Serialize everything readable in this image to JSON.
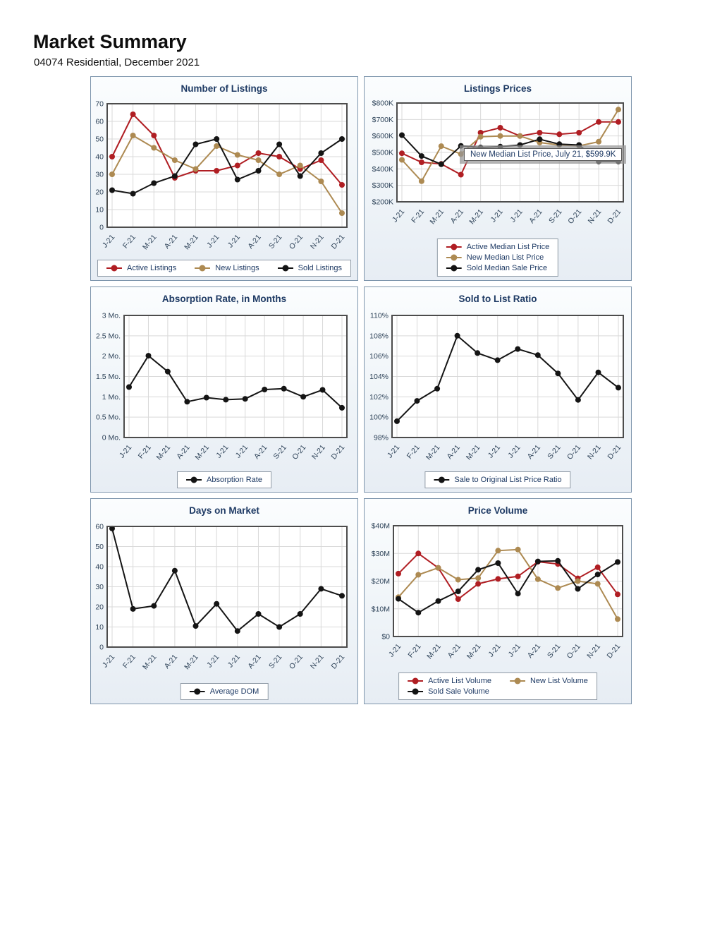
{
  "header": {
    "title": "Market Summary",
    "subtitle": "04074 Residential, December 2021"
  },
  "colors": {
    "active_series": "#b01e23",
    "new_series": "#ad8a52",
    "sold_series": "#141414",
    "heading_navy": "#1e3a64",
    "panel_border": "#7d95ac"
  },
  "tooltip": {
    "chart_id": "listings_prices",
    "text": "New Median List Price, July 21, $599.9K"
  },
  "chart_data": [
    {
      "id": "number_of_listings",
      "type": "line",
      "title": "Number of Listings",
      "categories": [
        "J-21",
        "F-21",
        "M-21",
        "A-21",
        "M-21",
        "J-21",
        "J-21",
        "A-21",
        "S-21",
        "O-21",
        "N-21",
        "D-21"
      ],
      "ylim": [
        0,
        70
      ],
      "yticks": [
        "70",
        "60",
        "50",
        "40",
        "30",
        "20",
        "10",
        "0"
      ],
      "grid": true,
      "legend_position": "bottom",
      "series": [
        {
          "name": "Active Listings",
          "color": "#b01e23",
          "values": [
            40,
            64,
            52,
            28,
            32,
            32,
            35,
            42,
            40,
            33,
            38,
            24
          ]
        },
        {
          "name": "New Listings",
          "color": "#ad8a52",
          "values": [
            30,
            52,
            45,
            38,
            33,
            46,
            41,
            38,
            30,
            35,
            26,
            8
          ]
        },
        {
          "name": "Sold Listings",
          "color": "#141414",
          "values": [
            21,
            19,
            25,
            29,
            47,
            50,
            27,
            32,
            47,
            29,
            42,
            50
          ]
        }
      ],
      "legend_rows": [
        [
          "Active Listings",
          "New Listings",
          "Sold Listings"
        ]
      ]
    },
    {
      "id": "listings_prices",
      "type": "line",
      "title": "Listings Prices",
      "categories": [
        "J-21",
        "F-21",
        "M-21",
        "A-21",
        "M-21",
        "J-21",
        "J-21",
        "A-21",
        "S-21",
        "O-21",
        "N-21",
        "D-21"
      ],
      "ylim": [
        200,
        800
      ],
      "yticks": [
        "$800K",
        "$700K",
        "$600K",
        "$500K",
        "$400K",
        "$300K",
        "$200K"
      ],
      "y_unit": "$K",
      "grid": true,
      "legend_position": "bottom",
      "series": [
        {
          "name": "Active Median List Price",
          "color": "#b01e23",
          "values": [
            495,
            440,
            430,
            365,
            620,
            650,
            600,
            620,
            610,
            620,
            685,
            685
          ]
        },
        {
          "name": "New Median List Price",
          "color": "#ad8a52",
          "values": [
            455,
            325,
            538,
            490,
            595,
            600,
            599.9,
            560,
            545,
            540,
            565,
            760
          ]
        },
        {
          "name": "Sold Median Sale Price",
          "color": "#141414",
          "values": [
            605,
            478,
            428,
            540,
            530,
            535,
            545,
            580,
            550,
            545,
            445,
            445
          ]
        }
      ],
      "legend_rows": [
        [
          "Active Median List Price"
        ],
        [
          "New Median List Price"
        ],
        [
          "Sold Median Sale Price"
        ]
      ]
    },
    {
      "id": "absorption_rate",
      "type": "line",
      "title": "Absorption Rate, in Months",
      "categories": [
        "J-21",
        "F-21",
        "M-21",
        "A-21",
        "M-21",
        "J-21",
        "J-21",
        "A-21",
        "S-21",
        "O-21",
        "N-21",
        "D-21"
      ],
      "ylim": [
        0,
        3
      ],
      "yticks": [
        "3 Mo.",
        "2.5 Mo.",
        "2 Mo.",
        "1.5 Mo.",
        "1 Mo.",
        "0.5 Mo.",
        "0 Mo."
      ],
      "grid": true,
      "legend_position": "bottom",
      "series": [
        {
          "name": "Absorption Rate",
          "color": "#141414",
          "values": [
            1.24,
            2.01,
            1.62,
            0.88,
            0.98,
            0.93,
            0.95,
            1.18,
            1.2,
            1.0,
            1.17,
            0.73
          ]
        }
      ],
      "legend_rows": [
        [
          "Absorption Rate"
        ]
      ]
    },
    {
      "id": "sold_to_list_ratio",
      "type": "line",
      "title": "Sold to List Ratio",
      "categories": [
        "J-21",
        "F-21",
        "M-21",
        "A-21",
        "M-21",
        "J-21",
        "J-21",
        "A-21",
        "S-21",
        "O-21",
        "N-21",
        "D-21"
      ],
      "ylim": [
        98,
        110
      ],
      "yticks": [
        "110%",
        "108%",
        "106%",
        "104%",
        "102%",
        "100%",
        "98%"
      ],
      "grid": true,
      "legend_position": "bottom",
      "series": [
        {
          "name": "Sale to Original List Price Ratio",
          "color": "#141414",
          "values": [
            99.6,
            101.6,
            102.8,
            108,
            106.3,
            105.6,
            106.7,
            106.1,
            104.3,
            101.7,
            104.4,
            102.9
          ]
        }
      ],
      "legend_rows": [
        [
          "Sale to Original List Price Ratio"
        ]
      ]
    },
    {
      "id": "days_on_market",
      "type": "line",
      "title": "Days on Market",
      "categories": [
        "J-21",
        "F-21",
        "M-21",
        "A-21",
        "M-21",
        "J-21",
        "J-21",
        "A-21",
        "S-21",
        "O-21",
        "N-21",
        "D-21"
      ],
      "ylim": [
        0,
        60
      ],
      "yticks": [
        "60",
        "50",
        "40",
        "30",
        "20",
        "10",
        "0"
      ],
      "grid": true,
      "legend_position": "bottom",
      "series": [
        {
          "name": "Average DOM",
          "color": "#141414",
          "values": [
            59,
            19,
            20.5,
            38,
            10.5,
            21.5,
            8,
            16.5,
            10,
            16.5,
            29,
            25.5
          ]
        }
      ],
      "legend_rows": [
        [
          "Average DOM"
        ]
      ]
    },
    {
      "id": "price_volume",
      "type": "line",
      "title": "Price Volume",
      "categories": [
        "J-21",
        "F-21",
        "M-21",
        "A-21",
        "M-21",
        "J-21",
        "J-21",
        "A-21",
        "S-21",
        "O-21",
        "N-21",
        "D-21"
      ],
      "ylim": [
        0,
        40
      ],
      "yticks": [
        "$40M",
        "$30M",
        "$20M",
        "$10M",
        "$0"
      ],
      "y_unit": "$M",
      "grid": true,
      "legend_position": "bottom",
      "series": [
        {
          "name": "Active List Volume",
          "color": "#b01e23",
          "values": [
            22.7,
            30,
            24.8,
            13.5,
            19,
            20.8,
            21.7,
            27,
            26.2,
            21,
            25,
            15.2
          ]
        },
        {
          "name": "New List Volume",
          "color": "#ad8a52",
          "values": [
            14.2,
            22.3,
            24.8,
            20.5,
            21.1,
            31,
            31.4,
            20.7,
            17.5,
            20,
            19,
            6.3
          ]
        },
        {
          "name": "Sold Sale Volume",
          "color": "#141414",
          "values": [
            13.6,
            8.6,
            12.8,
            16.3,
            24.1,
            26.5,
            15.5,
            27.1,
            27.3,
            17.2,
            22.4,
            26.9
          ]
        }
      ],
      "legend_rows": [
        [
          "Active List Volume",
          "New List Volume"
        ],
        [
          "Sold Sale Volume"
        ]
      ]
    }
  ]
}
